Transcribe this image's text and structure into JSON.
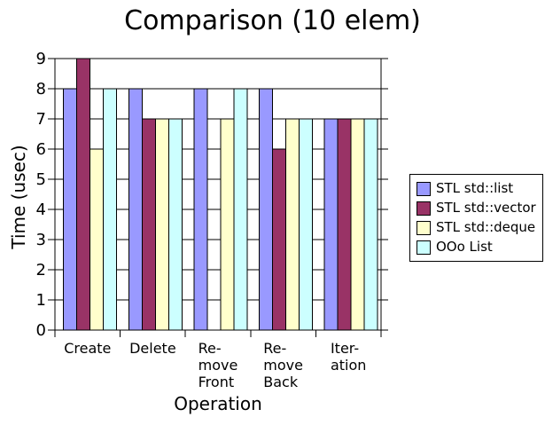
{
  "chart_data": {
    "type": "bar",
    "title": "Comparison (10 elem)",
    "xlabel": "Operation",
    "ylabel": "Time (usec)",
    "ylim": [
      0,
      9
    ],
    "yticks": [
      0,
      1,
      2,
      3,
      4,
      5,
      6,
      7,
      8,
      9
    ],
    "grid": true,
    "legend_position": "right",
    "categories": [
      "Create",
      "Delete",
      "Re-move Front",
      "Re-move Back",
      "Iter-ation"
    ],
    "category_label_lines": [
      [
        "Create"
      ],
      [
        "Delete"
      ],
      [
        "Re-",
        "move",
        "Front"
      ],
      [
        "Re-",
        "move",
        "Back"
      ],
      [
        "Iter-",
        "ation"
      ]
    ],
    "series": [
      {
        "name": "STL std::list",
        "color": "#9999FF",
        "values": [
          8,
          8,
          8,
          8,
          7
        ]
      },
      {
        "name": "STL std::vector",
        "color": "#993366",
        "values": [
          9,
          7,
          0,
          6,
          7
        ]
      },
      {
        "name": "STL std::deque",
        "color": "#FFFFCC",
        "values": [
          6,
          7,
          7,
          7,
          7
        ]
      },
      {
        "name": "OOo List",
        "color": "#CCFFFF",
        "values": [
          8,
          7,
          8,
          7,
          7
        ]
      }
    ],
    "colors": {
      "axis": "#000000",
      "gridline": "#000000",
      "bar_border": "#000000",
      "background": "#FFFFFF"
    }
  }
}
